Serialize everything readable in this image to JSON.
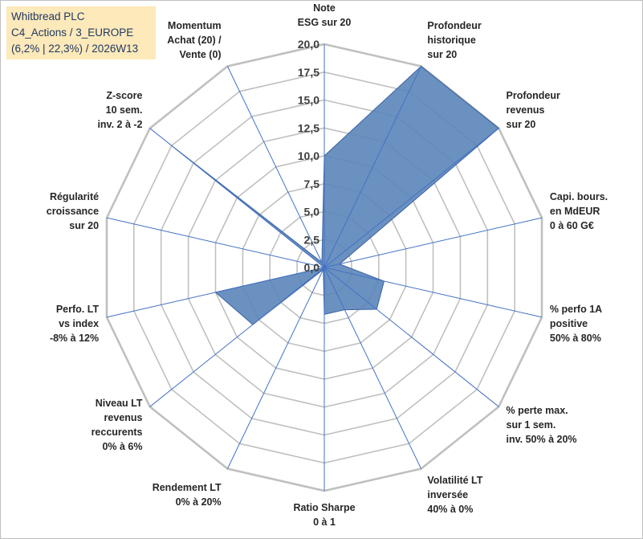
{
  "title_box": {
    "line1": "Whitbread PLC",
    "line2": "C4_Actions / 3_EUROPE",
    "line3": "(6,2% | 22,3%) / 2026W13"
  },
  "chart_data": {
    "type": "radar",
    "title": "Whitbread PLC",
    "rmin": 0,
    "rmax": 20,
    "grid_step": 2.5,
    "tick_labels": [
      "0,0",
      "2,5",
      "5,0",
      "7,5",
      "10,0",
      "12,5",
      "15,0",
      "17,5",
      "20,0"
    ],
    "categories": [
      [
        "Note",
        "ESG sur 20"
      ],
      [
        "Profondeur",
        "historique",
        "sur 20"
      ],
      [
        "Profondeur",
        "revenus",
        "sur 20"
      ],
      [
        "Capi. bours.",
        "en MdEUR",
        "0 à 60 G€"
      ],
      [
        "% perfo 1A",
        "positive",
        "50% à 80%"
      ],
      [
        "% perte max.",
        "sur 1 sem.",
        "inv. 50% à 20%"
      ],
      [
        "Volatilité LT",
        "inversée",
        "40% à 0%"
      ],
      [
        "Ratio Sharpe",
        "0 à 1"
      ],
      [
        "Rendement LT",
        "0% à 20%"
      ],
      [
        "Niveau LT",
        "revenus",
        "reccurents",
        "0% à 6%"
      ],
      [
        "Perfo. LT",
        "vs index",
        "-8% à 12%"
      ],
      [
        "Régularité",
        "croissance",
        "sur 20"
      ],
      [
        "Z-score",
        "10 sem.",
        "inv. 2 à -2"
      ],
      [
        "Momentum",
        "Achat (20) /",
        "Vente (0)"
      ]
    ],
    "series": [
      {
        "name": "Whitbread PLC",
        "values": [
          10.0,
          20.0,
          20.0,
          1.4,
          5.5,
          6.0,
          4.2,
          4.2,
          0.2,
          8.2,
          10.0,
          0.0,
          17.5,
          0.5
        ],
        "fill": "#5b85b9",
        "stroke": "#3a63a5"
      }
    ],
    "colors": {
      "grid": "#c0c0c0",
      "spoke": "#4472c4"
    }
  }
}
